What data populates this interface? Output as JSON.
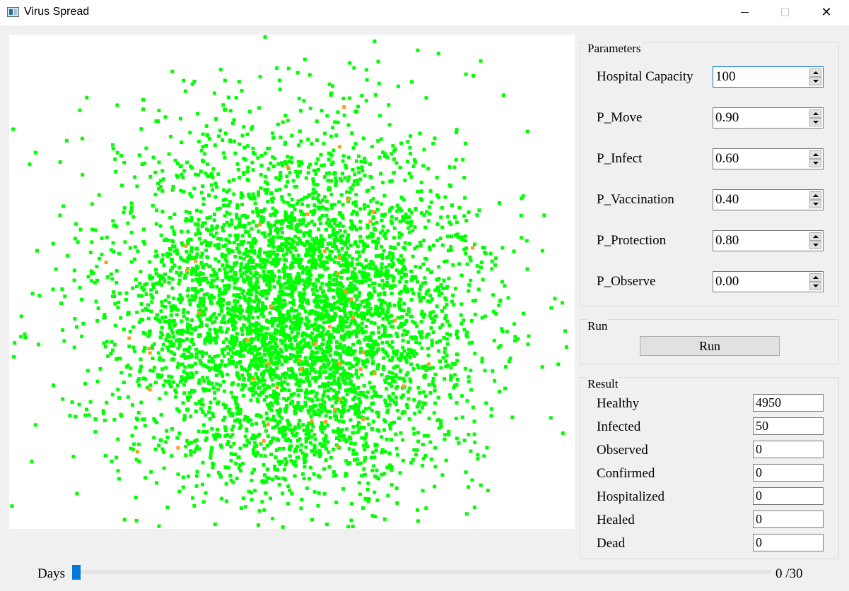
{
  "window": {
    "title": "Virus Spread",
    "minimize_icon": "minimize-icon",
    "maximize_icon": "maximize-icon",
    "close_icon": "close-icon",
    "close_glyph": "✕"
  },
  "canvas": {
    "healthy_color": "#00ff00",
    "infected_color": "#ff9a24",
    "healthy_count": 4950,
    "infected_count": 50
  },
  "parameters": {
    "title": "Parameters",
    "fields": [
      {
        "label": "Hospital Capacity",
        "value": "100"
      },
      {
        "label": "P_Move",
        "value": "0.90"
      },
      {
        "label": "P_Infect",
        "value": "0.60"
      },
      {
        "label": "P_Vaccination",
        "value": "0.40"
      },
      {
        "label": "P_Protection",
        "value": "0.80"
      },
      {
        "label": "P_Observe",
        "value": "0.00"
      }
    ]
  },
  "run": {
    "title": "Run",
    "button_label": "Run"
  },
  "result": {
    "title": "Result",
    "fields": [
      {
        "label": "Healthy",
        "value": "4950"
      },
      {
        "label": "Infected",
        "value": "50"
      },
      {
        "label": "Observed",
        "value": "0"
      },
      {
        "label": "Confirmed",
        "value": "0"
      },
      {
        "label": "Hospitalized",
        "value": "0"
      },
      {
        "label": "Healed",
        "value": "0"
      },
      {
        "label": "Dead",
        "value": "0"
      }
    ]
  },
  "days": {
    "label": "Days",
    "current": 0,
    "total": 30,
    "value_text": "0  /30",
    "accent_color": "#0078d7"
  }
}
